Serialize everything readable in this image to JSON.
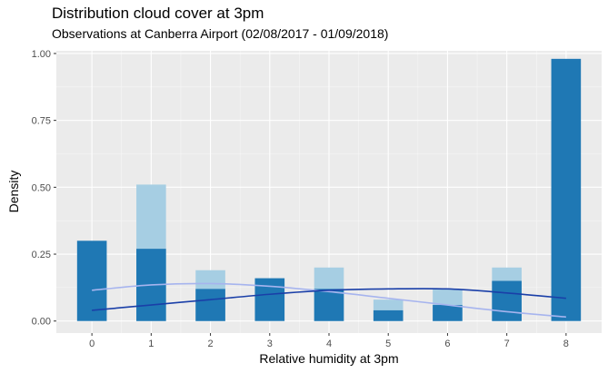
{
  "chart_data": {
    "type": "bar",
    "title": "Distribution cloud cover at 3pm",
    "subtitle": "Observations at Canberra Airport (02/08/2017 - 01/09/2018)",
    "xlabel": "Relative humidity at 3pm",
    "ylabel": "Density",
    "categories": [
      "0",
      "1",
      "2",
      "3",
      "4",
      "5",
      "6",
      "7",
      "8"
    ],
    "x": [
      0,
      1,
      2,
      3,
      4,
      5,
      6,
      7,
      8
    ],
    "ylim": [
      -0.045,
      1.01
    ],
    "yticks": [
      0.0,
      0.25,
      0.5,
      0.75,
      1.0
    ],
    "ytick_labels": [
      "0.00",
      "0.25",
      "0.50",
      "0.75",
      "1.00"
    ],
    "grid": true,
    "background": "#ebebeb",
    "series": [
      {
        "kind": "bar",
        "color": "#a6cee3",
        "values": [
          0.0,
          0.51,
          0.19,
          0.0,
          0.2,
          0.08,
          0.12,
          0.2,
          0.0
        ]
      },
      {
        "kind": "bar",
        "color": "#1f78b4",
        "values": [
          0.3,
          0.27,
          0.12,
          0.16,
          0.12,
          0.04,
          0.06,
          0.15,
          0.98
        ]
      },
      {
        "kind": "line",
        "color": "#a6b4ee",
        "x": [
          0,
          1,
          2,
          3,
          4,
          5,
          6,
          7,
          8
        ],
        "values": [
          0.115,
          0.135,
          0.14,
          0.13,
          0.11,
          0.085,
          0.06,
          0.035,
          0.015
        ]
      },
      {
        "kind": "line",
        "color": "#1a3fa8",
        "x": [
          0,
          1,
          2,
          3,
          4,
          5,
          6,
          7,
          8
        ],
        "values": [
          0.04,
          0.06,
          0.08,
          0.1,
          0.115,
          0.12,
          0.12,
          0.105,
          0.085
        ]
      }
    ]
  }
}
